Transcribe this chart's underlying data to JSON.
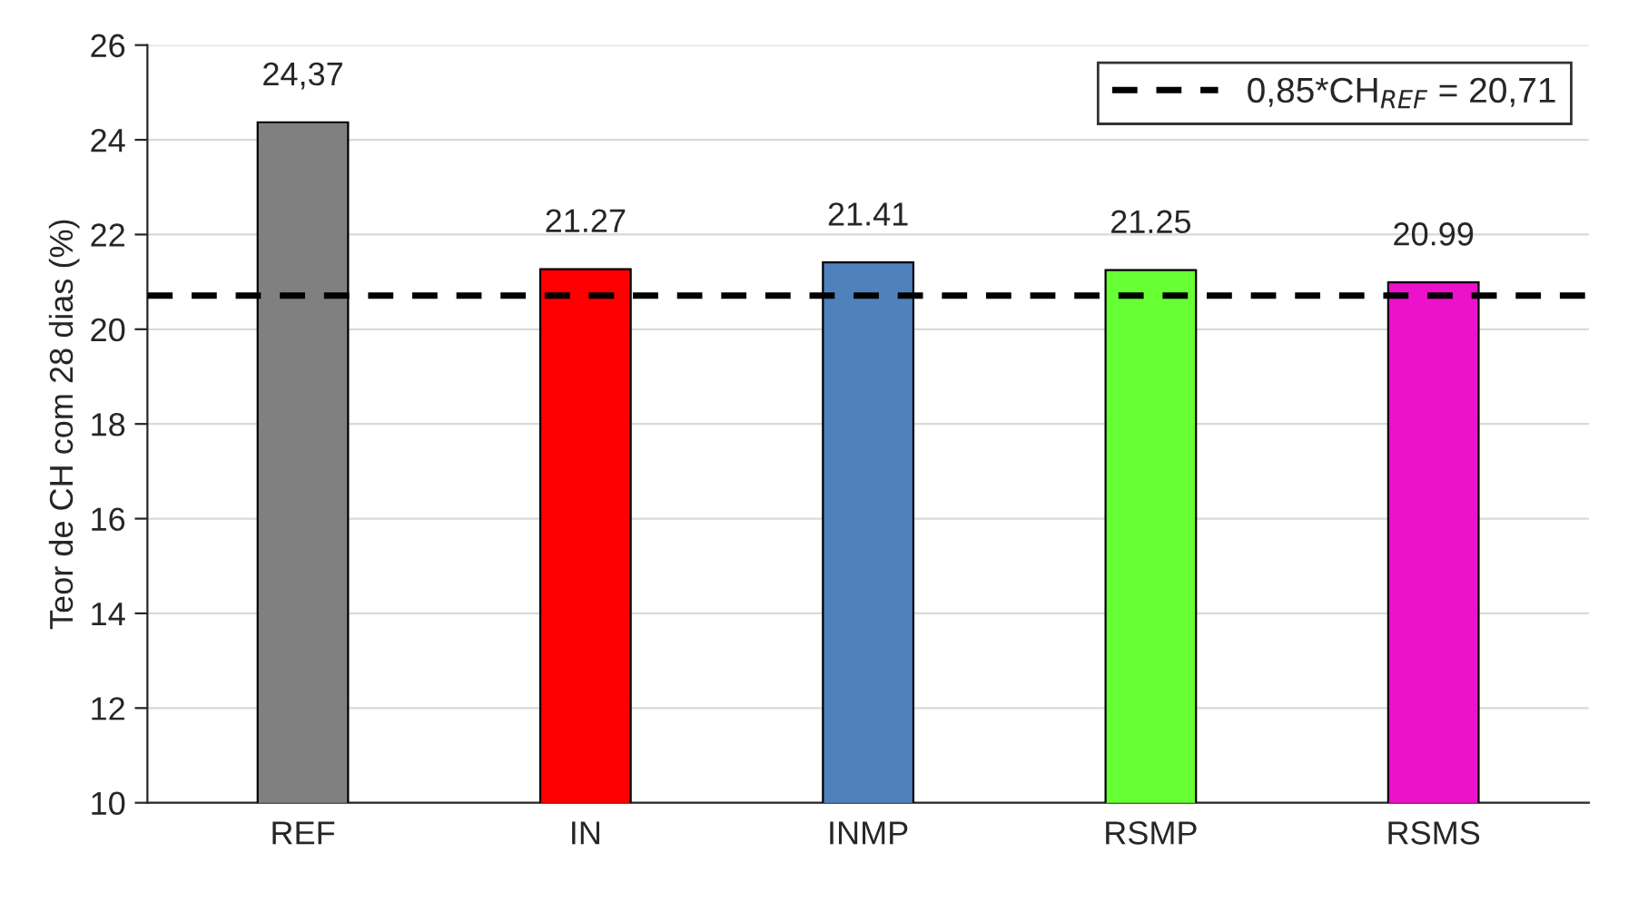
{
  "chart_data": {
    "type": "bar",
    "ylabel": "Teor de CH com 28 dias (%)",
    "categories": [
      "REF",
      "IN",
      "INMP",
      "RSMP",
      "RSMS"
    ],
    "values": [
      24.37,
      21.27,
      21.41,
      21.25,
      20.99
    ],
    "colors": [
      "#808080",
      "#ff0000",
      "#4f81bd",
      "#66ff33",
      "#ee11cc"
    ],
    "value_labels": [
      "24,37",
      "21.27",
      "21.41",
      "21.25",
      "20.99"
    ],
    "ylim": [
      10,
      26
    ],
    "yticks": [
      10,
      12,
      14,
      16,
      18,
      20,
      22,
      24,
      26
    ],
    "grid": "y",
    "ref_lines": [
      {
        "axis": "y",
        "value": 20.71,
        "label": "0,85*CH$_{REF}$ = 20,71",
        "color": "#000000",
        "line_style": "dashed"
      }
    ],
    "legend": "top right"
  }
}
